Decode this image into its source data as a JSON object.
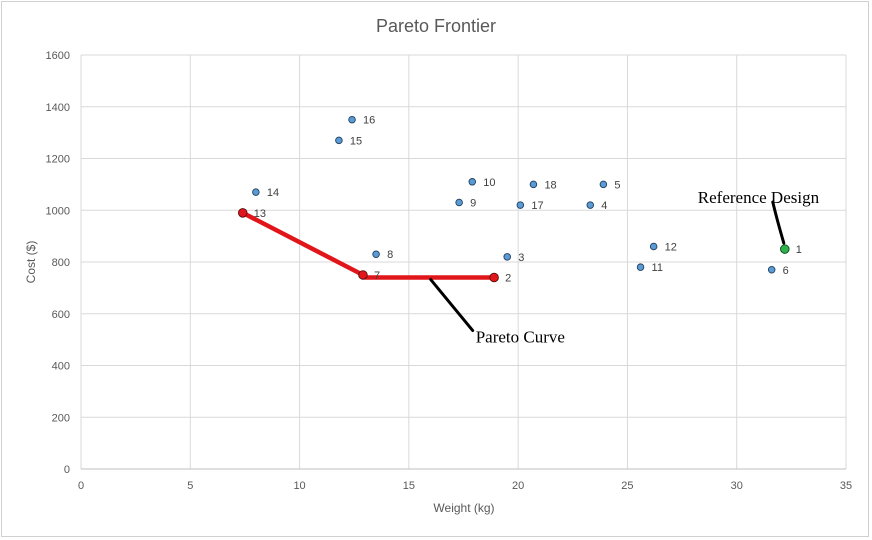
{
  "chart_data": {
    "type": "scatter",
    "title": "Pareto Frontier",
    "xlabel": "Weight (kg)",
    "ylabel": "Cost ($)",
    "xlim": [
      0,
      35
    ],
    "ylim": [
      0,
      1600
    ],
    "xticks": [
      "0",
      "5",
      "10",
      "15",
      "20",
      "25",
      "30",
      "35"
    ],
    "yticks": [
      "0",
      "200",
      "400",
      "600",
      "800",
      "1000",
      "1200",
      "1400",
      "1600"
    ],
    "grid": true,
    "points": [
      {
        "label": "1",
        "x": 32.2,
        "y": 850,
        "role": "reference"
      },
      {
        "label": "2",
        "x": 18.9,
        "y": 740,
        "role": "pareto"
      },
      {
        "label": "3",
        "x": 19.5,
        "y": 820,
        "role": "design"
      },
      {
        "label": "4",
        "x": 23.3,
        "y": 1020,
        "role": "design"
      },
      {
        "label": "5",
        "x": 23.9,
        "y": 1100,
        "role": "design"
      },
      {
        "label": "6",
        "x": 31.6,
        "y": 770,
        "role": "design"
      },
      {
        "label": "7",
        "x": 12.9,
        "y": 750,
        "role": "pareto"
      },
      {
        "label": "8",
        "x": 13.5,
        "y": 830,
        "role": "design"
      },
      {
        "label": "9",
        "x": 17.3,
        "y": 1030,
        "role": "design"
      },
      {
        "label": "10",
        "x": 17.9,
        "y": 1110,
        "role": "design"
      },
      {
        "label": "11",
        "x": 25.6,
        "y": 780,
        "role": "design"
      },
      {
        "label": "12",
        "x": 26.2,
        "y": 860,
        "role": "design"
      },
      {
        "label": "13",
        "x": 7.4,
        "y": 990,
        "role": "pareto"
      },
      {
        "label": "14",
        "x": 8.0,
        "y": 1070,
        "role": "design"
      },
      {
        "label": "15",
        "x": 11.8,
        "y": 1270,
        "role": "design"
      },
      {
        "label": "16",
        "x": 12.4,
        "y": 1350,
        "role": "design"
      },
      {
        "label": "17",
        "x": 20.1,
        "y": 1020,
        "role": "design"
      },
      {
        "label": "18",
        "x": 20.7,
        "y": 1100,
        "role": "design"
      }
    ],
    "pareto_curve": [
      {
        "x": 7.4,
        "y": 990
      },
      {
        "x": 12.9,
        "y": 750
      },
      {
        "x": 13.0,
        "y": 740
      },
      {
        "x": 18.9,
        "y": 740
      }
    ],
    "annotations": [
      {
        "text": "Reference Design",
        "target_point": "1"
      },
      {
        "text": "Pareto Curve",
        "target": "pareto_curve"
      }
    ],
    "colors": {
      "design": "#5b9bd5",
      "pareto": "#e0161b",
      "reference": "#2fb14b",
      "curve": "#e0161b",
      "grid": "#d9d9d9"
    }
  }
}
